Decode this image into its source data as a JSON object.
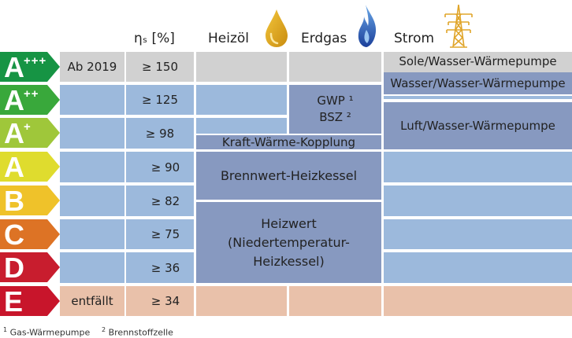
{
  "colors": {
    "grey": "#d1d1d1",
    "blue": "#9cb9dc",
    "darkblue": "#8799c0",
    "peach": "#e9c1aa",
    "a3": "#169444",
    "a2": "#39a83b",
    "a1": "#9fc73a",
    "a": "#dfdc2e",
    "b": "#efc22a",
    "c": "#dd7325",
    "d": "#c81d2e",
    "e": "#c8152b"
  },
  "headers": {
    "eta": "ηₛ [%]",
    "oil": "Heizöl",
    "gas": "Erdgas",
    "power": "Strom"
  },
  "icons": {
    "oil": "oil-drop-icon",
    "gas": "gas-flame-icon",
    "power": "power-pylon-icon"
  },
  "rows": [
    {
      "letter": "A",
      "plus": "+++",
      "note": "Ab 2019",
      "eta": "≥ 150"
    },
    {
      "letter": "A",
      "plus": "++",
      "note": "",
      "eta": "≥ 125"
    },
    {
      "letter": "A",
      "plus": "+",
      "note": "",
      "eta": "≥  98"
    },
    {
      "letter": "A",
      "plus": "",
      "note": "",
      "eta": "≥ 90"
    },
    {
      "letter": "B",
      "plus": "",
      "note": "",
      "eta": "≥ 82"
    },
    {
      "letter": "C",
      "plus": "",
      "note": "",
      "eta": "≥ 75"
    },
    {
      "letter": "D",
      "plus": "",
      "note": "",
      "eta": "≥ 36"
    },
    {
      "letter": "E",
      "plus": "",
      "note": "entfällt",
      "eta": "≥ 34"
    }
  ],
  "technologies": {
    "gwp": "GWP ¹",
    "bsz": "BSZ ²",
    "kwk": "Kraft-Wärme-Kopplung",
    "brennwert": "Brennwert-Heizkessel",
    "heizwert_line1": "Heizwert",
    "heizwert_line2": "(Niedertemperatur-",
    "heizwert_line3": "Heizkessel)",
    "sole": "Sole/Wasser-Wärmepumpe",
    "wasser": "Wasser/Wasser-Wärmepumpe",
    "luft": "Luft/Wasser-Wärmepumpe"
  },
  "footnotes": {
    "f1_mark": "1",
    "f1_text": "Gas-Wärmepumpe",
    "f2_mark": "2",
    "f2_text": "Brennstoffzelle"
  }
}
